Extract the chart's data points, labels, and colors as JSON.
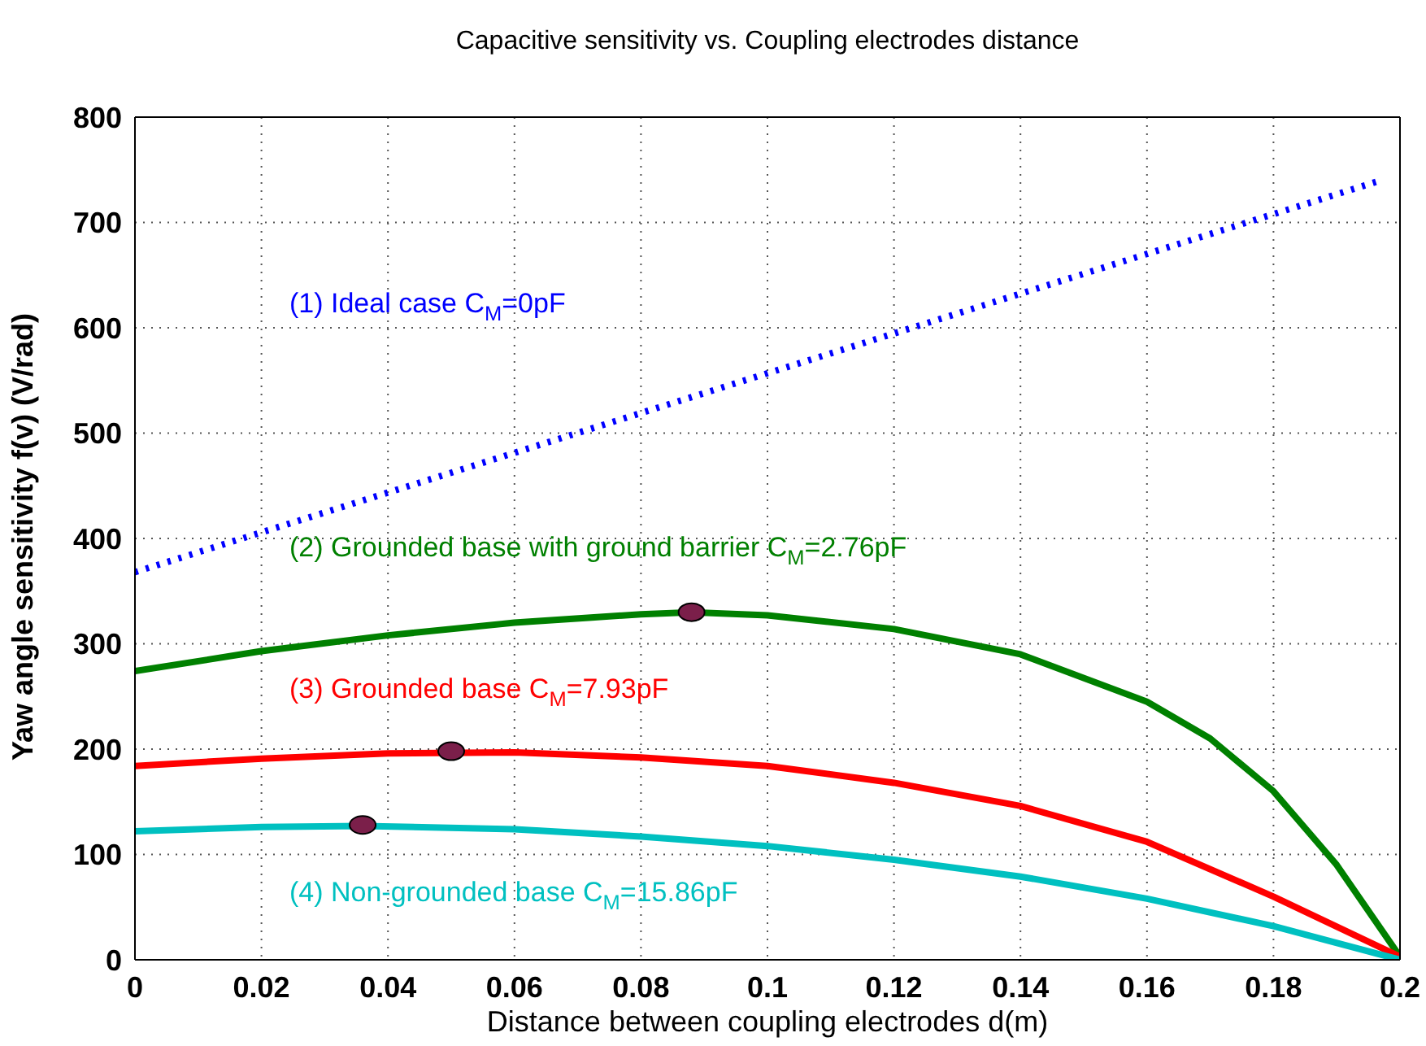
{
  "chart_data": {
    "type": "line",
    "title": "Capacitive sensitivity vs.  Coupling electrodes distance",
    "xlabel": "Distance between coupling electrodes d(m)",
    "ylabel": "Yaw angle sensitivity f(v) (V/rad)",
    "xlim": [
      0,
      0.2
    ],
    "xticks": [
      0,
      0.02,
      0.04,
      0.06,
      0.08,
      0.1,
      0.12,
      0.14,
      0.16,
      0.18,
      0.2
    ],
    "ylim": [
      0,
      800
    ],
    "yticks": [
      0,
      100,
      200,
      300,
      400,
      500,
      600,
      700,
      800
    ],
    "grid": true,
    "legend": false,
    "series": [
      {
        "name": "(1) Ideal case C$_{M}$=0pF",
        "color": "#0000ff",
        "line_style": "dotted",
        "marker": "none",
        "x": [
          0,
          0.197
        ],
        "values": [
          368,
          740
        ]
      },
      {
        "name": "(2) Grounded base with ground barrier C$_{M}$=2.76pF",
        "color": "#008000",
        "line_style": "solid",
        "marker": "none",
        "x": [
          0,
          0.02,
          0.04,
          0.06,
          0.08,
          0.088,
          0.1,
          0.12,
          0.14,
          0.16,
          0.17,
          0.18,
          0.19,
          0.2
        ],
        "values": [
          274,
          293,
          308,
          320,
          328,
          330,
          327,
          314,
          290,
          245,
          210,
          160,
          90,
          3
        ]
      },
      {
        "name": "(3) Grounded base C$_{M}$=7.93pF",
        "color": "#ff0000",
        "line_style": "solid",
        "marker": "none",
        "x": [
          0,
          0.02,
          0.04,
          0.06,
          0.08,
          0.1,
          0.12,
          0.14,
          0.16,
          0.18,
          0.2
        ],
        "values": [
          184,
          191,
          196,
          197,
          192,
          184,
          168,
          146,
          112,
          60,
          3
        ]
      },
      {
        "name": "(4) Non-grounded base C$_{M}$=15.86pF",
        "color": "#00c0c0",
        "line_style": "solid",
        "marker": "none",
        "x": [
          0,
          0.02,
          0.036,
          0.06,
          0.08,
          0.1,
          0.12,
          0.14,
          0.16,
          0.18,
          0.2
        ],
        "values": [
          122,
          126,
          127,
          124,
          117,
          108,
          95,
          79,
          58,
          32,
          0
        ]
      },
      {
        "type": "scatter",
        "color": "#7b1f4a",
        "marker": "circle",
        "x": [
          0.088,
          0.05,
          0.036
        ],
        "values": [
          330,
          198,
          128
        ]
      }
    ]
  }
}
